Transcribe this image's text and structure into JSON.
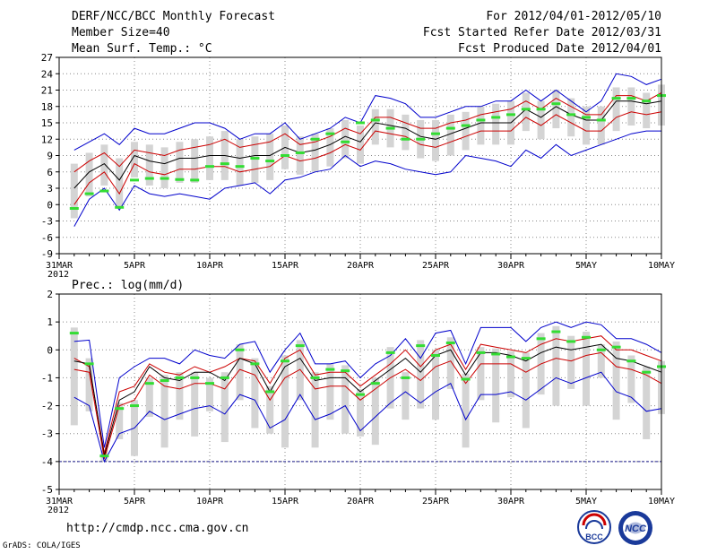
{
  "header": {
    "title": "DERF/NCC/BCC Monthly Forecast",
    "member_size": "Member Size=40",
    "variable": "Mean Surf. Temp.: °C",
    "period": "For 2012/04/01-2012/05/10",
    "started": "Fcst Started Refer Date 2012/03/31",
    "produced": "Fcst Produced Date 2012/04/01"
  },
  "footer": {
    "url": "http://cmdp.ncc.cma.gov.cn",
    "credit": "GrADS: COLA/IGES",
    "logo_bcc": "BCC",
    "logo_ncc": "NCC"
  },
  "colors": {
    "mean": "#000000",
    "spread": "#cc0000",
    "envelope": "#0000cc",
    "box": "#d4d4d4",
    "marker": "#33dd33"
  },
  "chart_data": [
    {
      "type": "line",
      "title": "Mean Surf. Temp.: °C",
      "x_tick_labels": [
        "31MAR",
        "5APR",
        "10APR",
        "15APR",
        "20APR",
        "25APR",
        "30APR",
        "5MAY",
        "10MAY"
      ],
      "x_tick_days": [
        0,
        5,
        10,
        15,
        20,
        25,
        30,
        35,
        40
      ],
      "x_year_label": "2012",
      "xlim": [
        0,
        40
      ],
      "ylim": [
        -9,
        27
      ],
      "yticks": [
        -9,
        -6,
        -3,
        0,
        3,
        6,
        9,
        12,
        15,
        18,
        21,
        24,
        27
      ],
      "grid": true,
      "days": [
        1,
        2,
        3,
        4,
        5,
        6,
        7,
        8,
        9,
        10,
        11,
        12,
        13,
        14,
        15,
        16,
        17,
        18,
        19,
        20,
        21,
        22,
        23,
        24,
        25,
        26,
        27,
        28,
        29,
        30,
        31,
        32,
        33,
        34,
        35,
        36,
        37,
        38,
        39,
        40
      ],
      "series": [
        {
          "name": "upper",
          "values": [
            10,
            11.5,
            13,
            11,
            14,
            13,
            13,
            14,
            15,
            15,
            14,
            12,
            13,
            13,
            15,
            12,
            13,
            14,
            16,
            15,
            20,
            19.5,
            18.5,
            16,
            16,
            17,
            18,
            18,
            19,
            19,
            21,
            19,
            21,
            19,
            17,
            19,
            24,
            23.5,
            22,
            23
          ]
        },
        {
          "name": "upper-spread",
          "values": [
            6,
            8,
            9.5,
            7,
            10,
            9.5,
            9,
            10,
            10.5,
            11,
            12,
            10.5,
            11,
            11.5,
            13,
            11,
            11.5,
            12.5,
            14,
            13,
            16,
            16,
            15,
            14,
            14,
            15,
            15.5,
            16.5,
            17,
            17.5,
            19,
            17.5,
            19.5,
            18,
            16.5,
            16.5,
            20,
            20,
            19,
            20.5
          ]
        },
        {
          "name": "ensemble-mean",
          "values": [
            3,
            6,
            7.5,
            4.5,
            9,
            8,
            7.5,
            8.5,
            8.5,
            9,
            9,
            8.5,
            9,
            9,
            10.5,
            9.5,
            10,
            11,
            12.5,
            11.5,
            15,
            14.5,
            14,
            12.5,
            12,
            13,
            14,
            15,
            15,
            15,
            17.5,
            16,
            18,
            16.5,
            15.5,
            15.5,
            19,
            19,
            18.5,
            19
          ]
        },
        {
          "name": "lower-spread",
          "values": [
            0,
            4,
            6,
            2,
            7.5,
            6,
            5.5,
            6.5,
            6.5,
            7,
            7,
            6,
            6.5,
            7,
            9,
            8,
            8.5,
            9.5,
            11,
            10,
            13.5,
            13,
            12.5,
            11,
            10.5,
            11.5,
            12.5,
            13.5,
            13.5,
            13.5,
            16,
            14.5,
            16.5,
            15,
            13.5,
            13.5,
            16,
            17,
            16.5,
            17
          ]
        },
        {
          "name": "lower",
          "values": [
            -4,
            1,
            3,
            -1,
            3.5,
            2,
            1.5,
            2,
            1.5,
            1,
            3,
            3.5,
            4,
            2,
            4.5,
            5,
            6,
            6.5,
            9,
            7,
            8,
            7.5,
            6.5,
            6,
            5.5,
            6,
            9,
            8.5,
            8,
            7,
            10,
            8.5,
            11,
            9,
            10,
            11,
            12,
            13,
            13.5,
            13.5
          ]
        }
      ],
      "markers": [
        -0.7,
        2,
        2.5,
        -0.5,
        4.5,
        4.8,
        4.8,
        4.6,
        4.5,
        7,
        7.5,
        7,
        8.5,
        8,
        9,
        9.5,
        12,
        13,
        11.5,
        15,
        15.5,
        14,
        12,
        12,
        13,
        14,
        14.5,
        15.5,
        16,
        16.5,
        17.5,
        17.5,
        18.5,
        16.5,
        16,
        15.5,
        19.5,
        19.5,
        19,
        20
      ]
    },
    {
      "type": "line",
      "title": "Prec.: log(mm/d)",
      "x_tick_labels": [
        "31MAR",
        "5APR",
        "10APR",
        "15APR",
        "20APR",
        "25APR",
        "30APR",
        "5MAY",
        "10MAY"
      ],
      "x_tick_days": [
        0,
        5,
        10,
        15,
        20,
        25,
        30,
        35,
        40
      ],
      "x_year_label": "2012",
      "xlim": [
        0,
        40
      ],
      "ylim": [
        -5,
        2
      ],
      "yticks": [
        -5,
        -4,
        -3,
        -2,
        -1,
        0,
        1,
        2
      ],
      "grid": true,
      "days": [
        1,
        2,
        3,
        4,
        5,
        6,
        7,
        8,
        9,
        10,
        11,
        12,
        13,
        14,
        15,
        16,
        17,
        18,
        19,
        20,
        21,
        22,
        23,
        24,
        25,
        26,
        27,
        28,
        29,
        30,
        31,
        32,
        33,
        34,
        35,
        36,
        37,
        38,
        39,
        40
      ],
      "series": [
        {
          "name": "upper",
          "values": [
            0.3,
            0.35,
            -3.5,
            -1,
            -0.6,
            -0.3,
            -0.3,
            -0.5,
            0,
            -0.2,
            -0.3,
            0.2,
            0.3,
            -0.8,
            0,
            0.6,
            -0.5,
            -0.5,
            -0.4,
            -1,
            -0.5,
            -0.2,
            0.4,
            -0.3,
            0.6,
            0.7,
            -0.5,
            0.8,
            0.8,
            0.8,
            0.3,
            0.8,
            1,
            0.8,
            1,
            0.9,
            0.4,
            0.4,
            0.2,
            -0.1
          ]
        },
        {
          "name": "upper-spread",
          "values": [
            -0.3,
            -0.6,
            -3.7,
            -1.5,
            -1.3,
            -0.5,
            -0.8,
            -0.9,
            -0.6,
            -0.8,
            -0.6,
            -0.3,
            -0.4,
            -1.2,
            -0.3,
            0,
            -0.9,
            -0.8,
            -0.8,
            -1.3,
            -0.9,
            -0.5,
            0,
            -0.6,
            0,
            0.2,
            -0.7,
            0.2,
            0.1,
            0,
            -0.1,
            0.2,
            0.4,
            0.3,
            0.4,
            0.5,
            0,
            0,
            -0.2,
            -0.4
          ]
        },
        {
          "name": "ensemble-mean",
          "values": [
            -0.4,
            -0.5,
            -3.8,
            -1.8,
            -1.5,
            -0.6,
            -1,
            -1.1,
            -0.8,
            -0.8,
            -1.1,
            -0.3,
            -0.5,
            -1.5,
            -0.6,
            -0.3,
            -1.1,
            -1,
            -1,
            -1.5,
            -1.1,
            -0.7,
            -0.3,
            -0.8,
            -0.2,
            0,
            -0.9,
            -0.1,
            -0.1,
            -0.2,
            -0.4,
            -0.1,
            0.1,
            0,
            0.1,
            0.2,
            -0.3,
            -0.4,
            -0.6,
            -0.8
          ]
        },
        {
          "name": "lower-spread",
          "values": [
            -0.7,
            -0.8,
            -3.9,
            -2,
            -1.8,
            -0.9,
            -1.3,
            -1.4,
            -1.2,
            -1.2,
            -1.4,
            -0.7,
            -0.9,
            -1.8,
            -1,
            -0.7,
            -1.4,
            -1.3,
            -1.3,
            -1.8,
            -1.4,
            -1,
            -0.7,
            -1.1,
            -0.6,
            -0.4,
            -1.2,
            -0.5,
            -0.5,
            -0.5,
            -0.8,
            -0.5,
            -0.3,
            -0.4,
            -0.2,
            -0.1,
            -0.6,
            -0.7,
            -0.9,
            -1.2
          ]
        },
        {
          "name": "lower",
          "values": [
            -1.7,
            -2,
            -4,
            -3,
            -2.8,
            -2.2,
            -2.5,
            -2.3,
            -2.1,
            -2,
            -2.3,
            -1.6,
            -1.8,
            -2.8,
            -2.5,
            -1.6,
            -2.5,
            -2.3,
            -2,
            -2.9,
            -2.4,
            -1.9,
            -1.5,
            -1.9,
            -1.5,
            -1.2,
            -2.5,
            -1.6,
            -1.6,
            -1.5,
            -1.8,
            -1.4,
            -1,
            -1.2,
            -1,
            -0.8,
            -1.5,
            -1.7,
            -2.2,
            -2.1
          ]
        }
      ],
      "markers": [
        0.6,
        -0.5,
        -3.8,
        -2.1,
        -2,
        -1.2,
        -1.1,
        -1,
        -1,
        -1.2,
        -1,
        0,
        -0.5,
        -1.5,
        -0.4,
        0.15,
        -1,
        -0.7,
        -0.75,
        -1.6,
        -1.2,
        -0.1,
        -1,
        0.15,
        -0.2,
        0.25,
        -1.05,
        -0.1,
        -0.15,
        -0.25,
        -0.3,
        0.4,
        0.65,
        0.3,
        0.45,
        0,
        0.1,
        -0.4,
        -0.8,
        -0.6
      ],
      "baseline": -4
    }
  ]
}
